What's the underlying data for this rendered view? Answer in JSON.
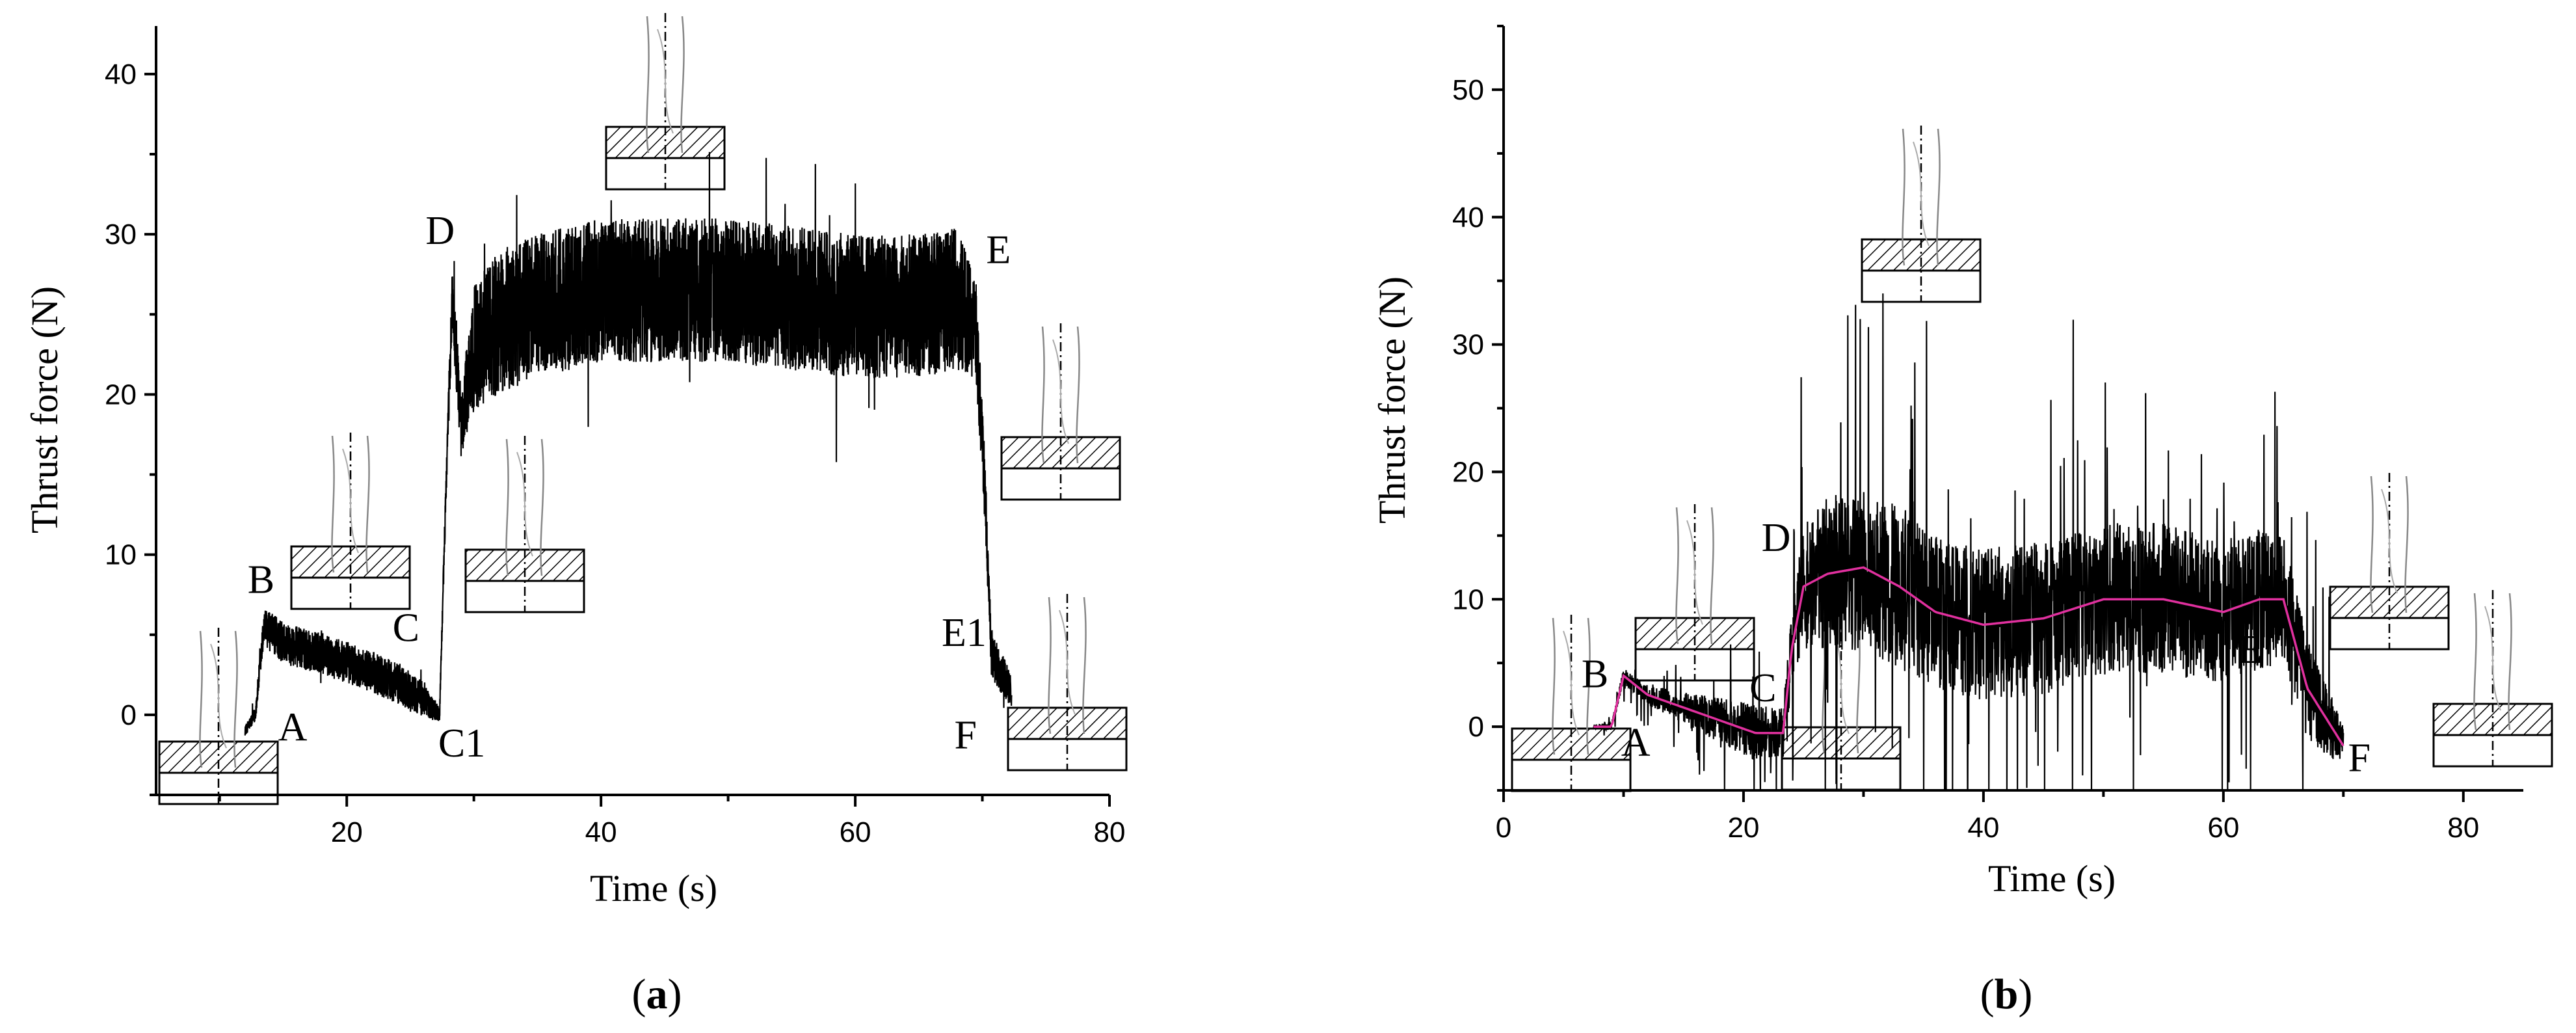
{
  "chart_data": [
    {
      "type": "line",
      "panel": "(a)",
      "panel_letter": "a",
      "xlabel": "Time (s)",
      "ylabel": "Thrust force (N)",
      "xlim": [
        5,
        80
      ],
      "ylim": [
        -5,
        43
      ],
      "xticks": [
        20,
        40,
        60,
        80
      ],
      "yticks": [
        0,
        10,
        20,
        30,
        40
      ],
      "grid": false,
      "series": [
        {
          "color": "#000000",
          "style": "noisy",
          "x": [
            12,
            12.8,
            13.5,
            15,
            18,
            21,
            24,
            26,
            27.3,
            27.8,
            28.3,
            29,
            30,
            32,
            35,
            40,
            45,
            50,
            55,
            60,
            65,
            68,
            69.5,
            70.2,
            70.7,
            71.2,
            72.3
          ],
          "y": [
            -1,
            0,
            5.5,
            4.5,
            3.8,
            3.0,
            2.0,
            1.0,
            0,
            14,
            26,
            18,
            23,
            24.5,
            25.5,
            26.5,
            26.5,
            26.5,
            26,
            25.5,
            25.5,
            26,
            24,
            14,
            4,
            3,
            1.5
          ],
          "noise": [
            0.3,
            0.5,
            1.2,
            1.3,
            1.3,
            1.3,
            1.3,
            1.1,
            0.5,
            1,
            2,
            2,
            4,
            4.5,
            4.5,
            4.5,
            4.5,
            4.5,
            4.5,
            4.5,
            4.5,
            4.5,
            3,
            2,
            1.5,
            1.5,
            1
          ]
        }
      ],
      "annotations": [
        {
          "text": "A",
          "x": 14.6,
          "y": -1.6
        },
        {
          "text": "B",
          "x": 12.2,
          "y": 7.6
        },
        {
          "text": "C",
          "x": 23.6,
          "y": 4.6
        },
        {
          "text": "C1",
          "x": 27.2,
          "y": -2.6
        },
        {
          "text": "D",
          "x": 26.2,
          "y": 29.4
        },
        {
          "text": "E",
          "x": 70.3,
          "y": 28.2
        },
        {
          "text": "E1",
          "x": 66.8,
          "y": 4.3
        },
        {
          "text": "F",
          "x": 67.8,
          "y": -2.1
        }
      ]
    },
    {
      "type": "line",
      "panel": "(b)",
      "panel_letter": "b",
      "xlabel": "Time (s)",
      "ylabel": "Thrust force (N)",
      "xlim": [
        0,
        85
      ],
      "ylim": [
        -5,
        55
      ],
      "xticks": [
        0,
        20,
        40,
        60,
        80
      ],
      "yticks": [
        0,
        10,
        20,
        30,
        40,
        50
      ],
      "grid": false,
      "series": [
        {
          "color": "#000000",
          "style": "noisy",
          "x": [
            7.5,
            9,
            10,
            12,
            15,
            18,
            21,
            23.3,
            24,
            25,
            27,
            30,
            33,
            36,
            40,
            45,
            50,
            55,
            60,
            63,
            65,
            67,
            69,
            70
          ],
          "y": [
            0,
            0,
            4,
            2.5,
            1.5,
            0.5,
            -0.5,
            -0.5,
            6,
            11,
            12,
            12.5,
            11,
            9,
            8,
            8.5,
            10,
            10,
            9,
            10,
            10,
            3,
            0,
            -1.5
          ],
          "noise": [
            0.2,
            0.3,
            0.6,
            0.8,
            1.2,
            1.8,
            2.2,
            2,
            3,
            5,
            6,
            6.5,
            6.5,
            6,
            6,
            6,
            6,
            6,
            5.5,
            5.5,
            5,
            4,
            2.5,
            1.5
          ]
        },
        {
          "color": "#e0309e",
          "style": "smooth",
          "x": [
            7.5,
            9,
            10,
            12,
            15,
            18,
            21,
            23.3,
            24,
            25,
            27,
            30,
            33,
            36,
            40,
            45,
            50,
            55,
            60,
            63,
            65,
            67,
            69,
            70
          ],
          "y": [
            0,
            0,
            4,
            2.5,
            1.5,
            0.5,
            -0.5,
            -0.5,
            6,
            11,
            12,
            12.5,
            11,
            9,
            8,
            8.5,
            10,
            10,
            9,
            10,
            10,
            3,
            0,
            -1.5
          ]
        }
      ],
      "annotations": [
        {
          "text": "A",
          "x": 9.8,
          "y": -2.3
        },
        {
          "text": "B",
          "x": 6.5,
          "y": 3.1
        },
        {
          "text": "C",
          "x": 20.5,
          "y": 2.0
        },
        {
          "text": "D",
          "x": 21.5,
          "y": 13.8
        },
        {
          "text": "E",
          "x": 61.2,
          "y": 5.0
        },
        {
          "text": "F",
          "x": 70.4,
          "y": -3.5
        }
      ]
    }
  ]
}
